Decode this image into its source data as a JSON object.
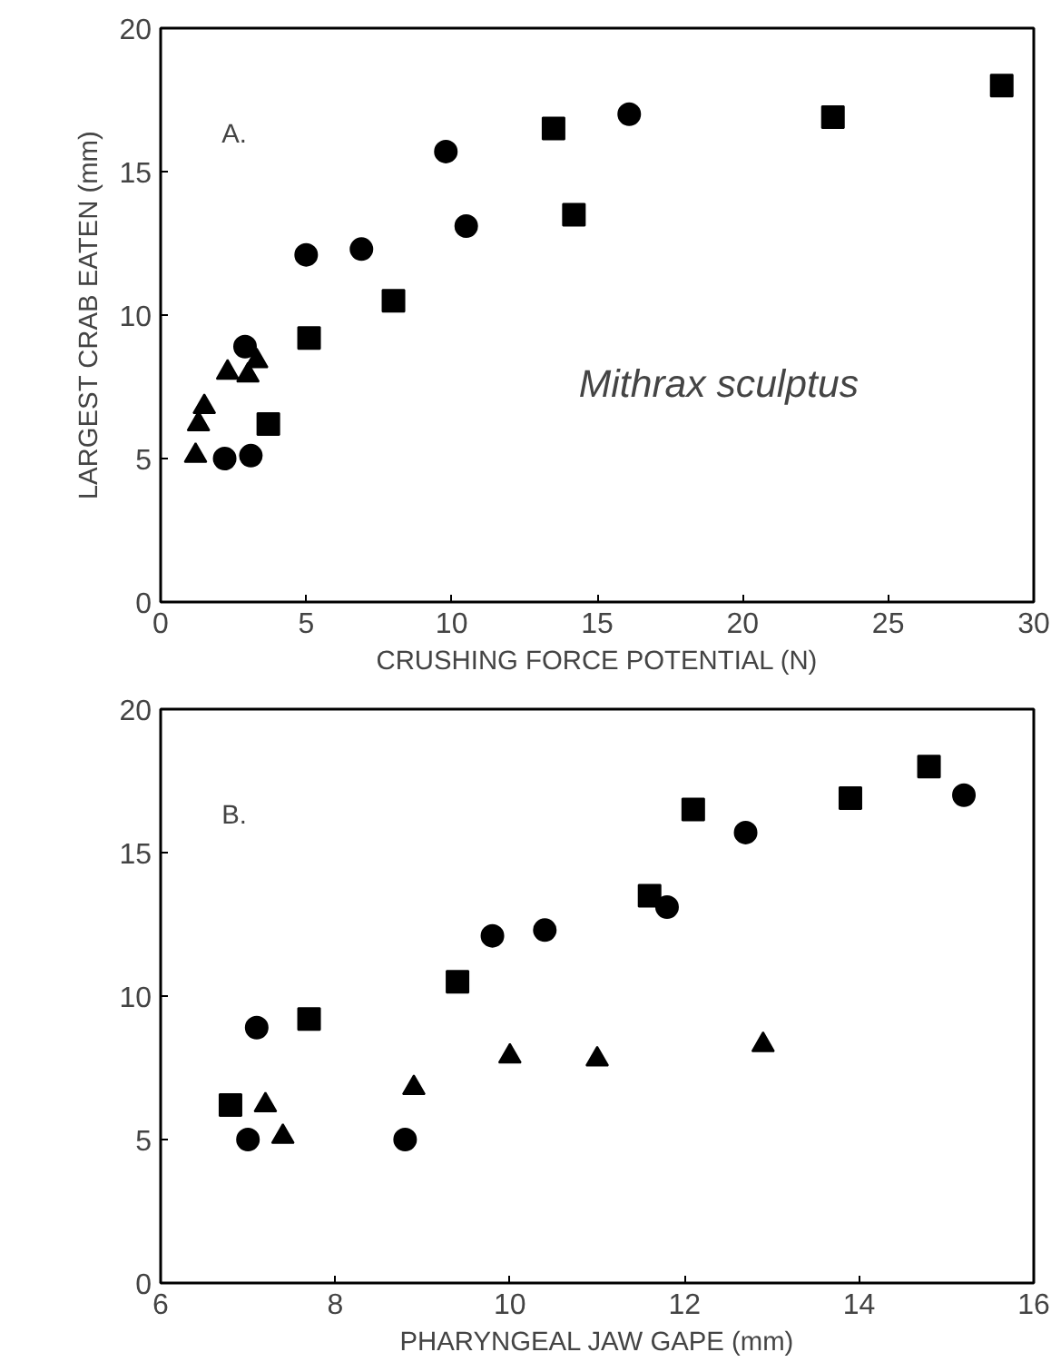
{
  "chart_data": [
    {
      "type": "scatter",
      "xlabel": "CRUSHING FORCE POTENTIAL (N)",
      "ylabel": "LARGEST CRAB EATEN (mm)",
      "xlim": [
        0,
        30
      ],
      "xticks": [
        0,
        5,
        10,
        15,
        20,
        25,
        30
      ],
      "ylim": [
        0,
        20
      ],
      "yticks": [
        0,
        5,
        10,
        15,
        20
      ],
      "grid": false,
      "annotations": [
        "A.",
        "Mithrax sculptus"
      ],
      "series": [
        {
          "marker": "circle",
          "color": "#000000",
          "x": [
            2.2,
            3.1,
            2.9,
            5.0,
            6.9,
            9.8,
            10.5,
            16.1
          ],
          "values": [
            5.0,
            5.1,
            8.9,
            12.1,
            12.3,
            15.7,
            13.1,
            17.0
          ]
        },
        {
          "marker": "square",
          "color": "#000000",
          "x": [
            3.7,
            5.1,
            8.0,
            13.5,
            14.2,
            23.1,
            28.9
          ],
          "values": [
            6.2,
            9.2,
            10.5,
            16.5,
            13.5,
            16.9,
            18.0
          ]
        },
        {
          "marker": "triangle",
          "color": "#000000",
          "x": [
            1.2,
            1.3,
            1.5,
            2.3,
            3.0,
            3.3
          ],
          "values": [
            5.1,
            6.2,
            6.8,
            8.0,
            7.9,
            8.4
          ]
        }
      ]
    },
    {
      "type": "scatter",
      "xlabel": "PHARYNGEAL JAW GAPE (mm)",
      "xlim": [
        6,
        16
      ],
      "xticks": [
        6,
        8,
        10,
        12,
        14,
        16
      ],
      "ylim": [
        0,
        20
      ],
      "yticks": [
        0,
        5,
        10,
        15,
        20
      ],
      "grid": false,
      "annotations": [
        "B."
      ],
      "series": [
        {
          "marker": "circle",
          "color": "#000000",
          "x": [
            7.0,
            7.1,
            8.8,
            9.8,
            10.4,
            11.8,
            12.7,
            15.2
          ],
          "values": [
            5.0,
            8.9,
            5.0,
            12.1,
            12.3,
            13.1,
            15.7,
            17.0
          ]
        },
        {
          "marker": "square",
          "color": "#000000",
          "x": [
            6.8,
            7.7,
            9.4,
            11.6,
            12.1,
            13.9,
            14.8
          ],
          "values": [
            6.2,
            9.2,
            10.5,
            13.5,
            16.5,
            16.9,
            18.0
          ]
        },
        {
          "marker": "triangle",
          "color": "#000000",
          "x": [
            7.2,
            7.4,
            8.9,
            10.0,
            11.0,
            12.9
          ],
          "values": [
            6.2,
            5.1,
            6.8,
            7.9,
            7.8,
            8.3
          ]
        }
      ]
    }
  ]
}
